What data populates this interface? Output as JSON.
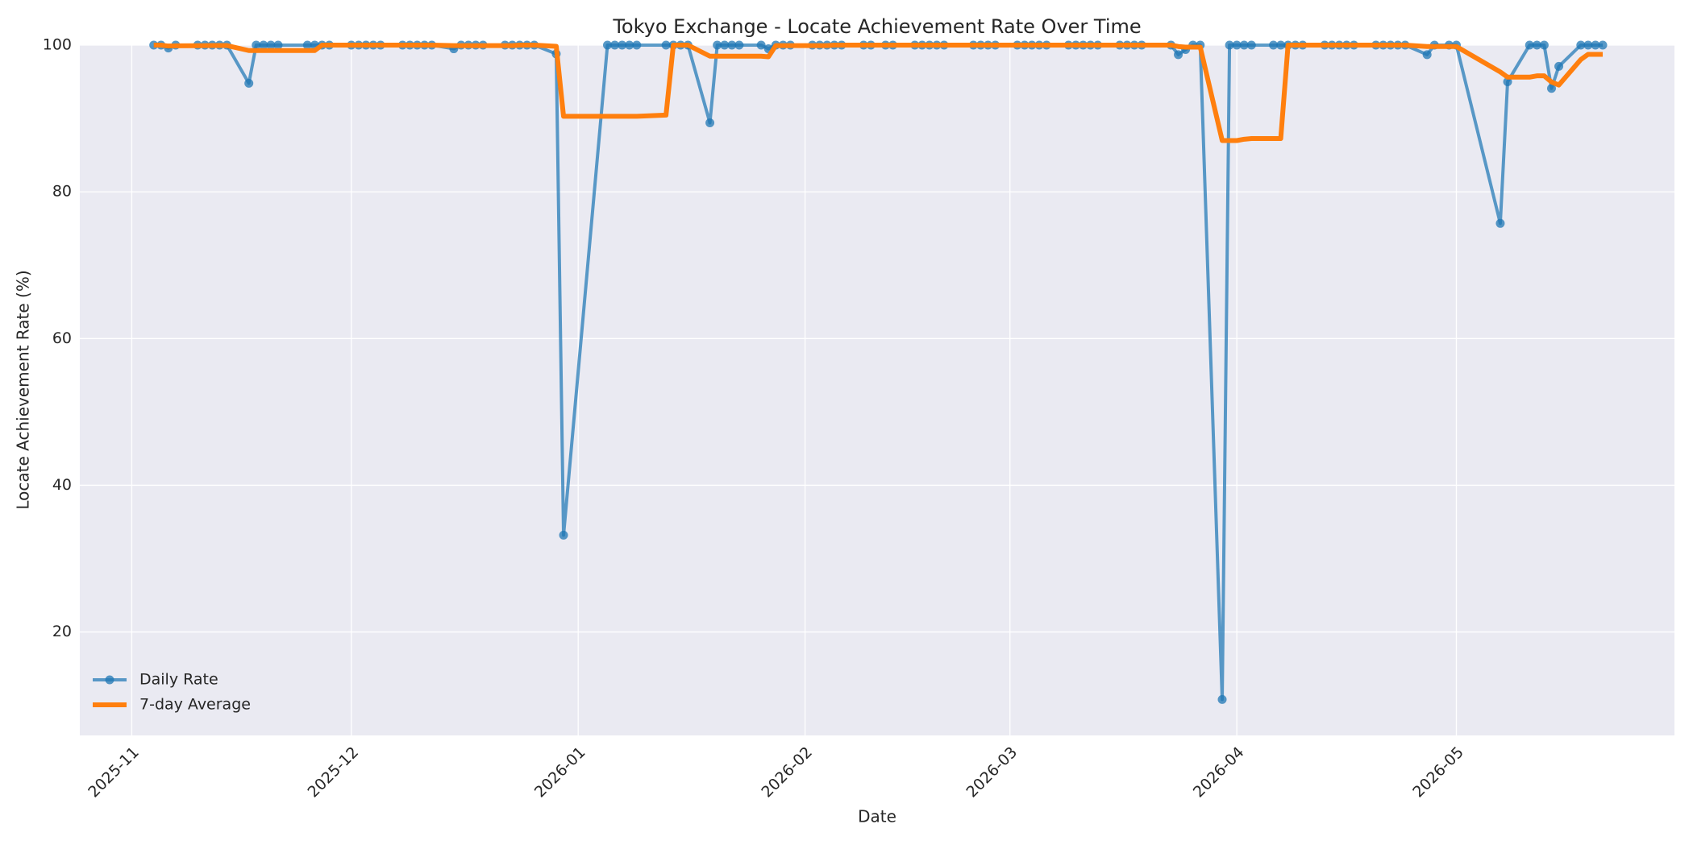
{
  "chart_data": {
    "type": "line",
    "title": "Tokyo Exchange - Locate Achievement Rate Over Time",
    "x_label": "Date",
    "y_label": "Locate Achievement Rate (%)",
    "x": [
      3,
      4,
      5,
      6,
      9,
      10,
      11,
      12,
      13,
      16,
      17,
      18,
      19,
      20,
      24,
      25,
      26,
      27,
      30,
      31,
      32,
      33,
      34,
      37,
      38,
      39,
      40,
      41,
      44,
      45,
      46,
      47,
      48,
      51,
      52,
      53,
      54,
      55,
      58,
      59,
      65,
      66,
      67,
      68,
      69,
      73,
      74,
      75,
      76,
      79,
      80,
      81,
      82,
      83,
      86,
      87,
      88,
      89,
      90,
      93,
      94,
      95,
      96,
      97,
      100,
      101,
      103,
      104,
      107,
      108,
      109,
      110,
      111,
      115,
      116,
      117,
      118,
      121,
      122,
      123,
      124,
      125,
      128,
      129,
      130,
      131,
      132,
      135,
      136,
      137,
      138,
      142,
      143,
      144,
      145,
      146,
      149,
      150,
      151,
      152,
      153,
      156,
      157,
      158,
      159,
      160,
      163,
      164,
      165,
      166,
      167,
      170,
      171,
      172,
      173,
      174,
      177,
      178,
      180,
      181,
      187,
      188,
      191,
      192,
      193,
      194,
      195,
      198,
      199,
      200,
      201
    ],
    "xlim": [
      -7.1,
      210.8
    ],
    "xticks": [
      {
        "value": 0,
        "label": "2025-11"
      },
      {
        "value": 30,
        "label": "2025-12"
      },
      {
        "value": 61,
        "label": "2026-01"
      },
      {
        "value": 92,
        "label": "2026-02"
      },
      {
        "value": 120,
        "label": "2026-03"
      },
      {
        "value": 151,
        "label": "2026-04"
      },
      {
        "value": 181,
        "label": "2026-05"
      }
    ],
    "ylim": [
      5.9,
      100
    ],
    "yticks": [
      20,
      40,
      60,
      80,
      100
    ],
    "grid": true,
    "legend": "lower left",
    "series": [
      {
        "name": "Daily Rate",
        "color": "#1f77b4",
        "markers": true,
        "values": [
          100,
          100,
          99.6,
          100,
          100,
          100,
          100,
          100,
          100,
          94.8,
          100,
          100,
          100,
          100,
          100,
          100,
          100,
          100,
          100,
          100,
          100,
          100,
          100,
          100,
          100,
          100,
          100,
          100,
          99.5,
          100,
          100,
          100,
          100,
          100,
          100,
          100,
          100,
          100,
          98.8,
          33.2,
          100,
          100,
          100,
          100,
          100,
          100,
          100,
          100,
          100,
          89.4,
          100,
          100,
          100,
          100,
          100,
          99.5,
          100,
          100,
          100,
          100,
          100,
          100,
          100,
          100,
          100,
          100,
          100,
          100,
          100,
          100,
          100,
          100,
          100,
          100,
          100,
          100,
          100,
          100,
          100,
          100,
          100,
          100,
          100,
          100,
          100,
          100,
          100,
          100,
          100,
          100,
          100,
          100,
          98.7,
          99.4,
          100,
          100,
          10.8,
          100,
          100,
          100,
          100,
          100,
          100,
          100,
          100,
          100,
          100,
          100,
          100,
          100,
          100,
          100,
          100,
          100,
          100,
          100,
          98.7,
          100,
          100,
          100,
          75.7,
          95.0,
          100,
          100,
          100,
          94.1,
          97.1,
          100,
          100,
          100,
          100
        ]
      },
      {
        "name": "7-day Average",
        "color": "#ff7f0e",
        "markers": false,
        "values": [
          100,
          100,
          99.87,
          99.9,
          99.92,
          99.93,
          99.94,
          99.94,
          99.94,
          99.26,
          99.26,
          99.26,
          99.26,
          99.26,
          99.26,
          99.26,
          100,
          100,
          100,
          100,
          100,
          100,
          100,
          100,
          100,
          100,
          100,
          100,
          99.93,
          99.93,
          99.93,
          99.93,
          99.93,
          99.93,
          99.93,
          100,
          100,
          100,
          99.83,
          90.29,
          90.29,
          90.29,
          90.29,
          90.29,
          90.29,
          90.46,
          100,
          100,
          100,
          98.49,
          98.49,
          98.49,
          98.49,
          98.49,
          98.49,
          98.41,
          99.93,
          99.93,
          99.93,
          99.93,
          99.93,
          99.93,
          100,
          100,
          100,
          100,
          100,
          100,
          100,
          100,
          100,
          100,
          100,
          100,
          100,
          100,
          100,
          100,
          100,
          100,
          100,
          100,
          100,
          100,
          100,
          100,
          100,
          100,
          100,
          100,
          100,
          100,
          99.81,
          99.73,
          99.73,
          99.73,
          86.99,
          86.99,
          86.99,
          87.17,
          87.26,
          87.26,
          87.26,
          100,
          100,
          100,
          100,
          100,
          100,
          100,
          100,
          100,
          100,
          100,
          100,
          100,
          99.81,
          99.81,
          99.81,
          99.81,
          96.34,
          95.63,
          95.63,
          95.81,
          95.81,
          94.97,
          94.56,
          98.03,
          98.74,
          98.74,
          98.74
        ]
      }
    ]
  }
}
